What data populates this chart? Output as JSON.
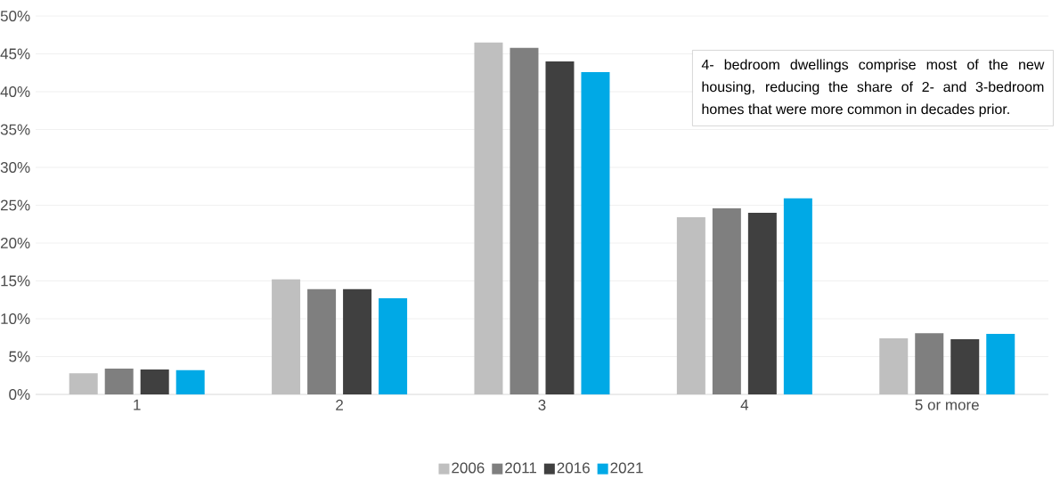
{
  "chart_data": {
    "type": "bar",
    "categories": [
      "1",
      "2",
      "3",
      "4",
      "5 or more"
    ],
    "series": [
      {
        "name": "2006",
        "color": "#bfbfbf",
        "values": [
          2.8,
          15.2,
          46.5,
          23.4,
          7.4
        ]
      },
      {
        "name": "2011",
        "color": "#7f7f7f",
        "values": [
          3.4,
          13.9,
          45.8,
          24.6,
          8.1
        ]
      },
      {
        "name": "2016",
        "color": "#404040",
        "values": [
          3.3,
          13.9,
          44.0,
          24.0,
          7.3
        ]
      },
      {
        "name": "2021",
        "color": "#00a9e6",
        "values": [
          3.2,
          12.7,
          42.6,
          25.9,
          8.0
        ]
      }
    ],
    "ylim": [
      0,
      50
    ],
    "yticks": [
      {
        "value": 0,
        "label": "0%"
      },
      {
        "value": 5,
        "label": "5%"
      },
      {
        "value": 10,
        "label": "10%"
      },
      {
        "value": 15,
        "label": "15%"
      },
      {
        "value": 20,
        "label": "20%"
      },
      {
        "value": 25,
        "label": "25%"
      },
      {
        "value": 30,
        "label": "30%"
      },
      {
        "value": 35,
        "label": "35%"
      },
      {
        "value": 40,
        "label": "40%"
      },
      {
        "value": 45,
        "label": "45%"
      },
      {
        "value": 50,
        "label": "50%"
      }
    ],
    "grid": "y",
    "legend": "bottom",
    "annotations": [
      "4- bedroom dwellings comprise most of the new housing, reducing the share of 2- and 3-bedroom homes that were more common in decades prior."
    ]
  }
}
